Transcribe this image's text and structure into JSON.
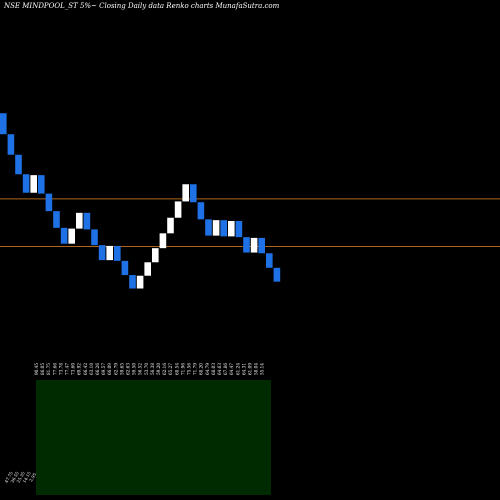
{
  "chart_data": {
    "type": "renko",
    "title": "NSE MINDPOOL_ST 5%~  Closing Daily data  Renko  charts MunafaSutra.com",
    "colors": {
      "background": "#000000",
      "up_brick": "#ffffff",
      "down_brick": "#1e72e6",
      "reference_line": "#b0651a",
      "volume_panel": "#002a00"
    },
    "bricks": [
      {
        "dir": "down",
        "close": 86.05
      },
      {
        "dir": "down",
        "close": 81.75
      },
      {
        "dir": "down",
        "close": 77.66
      },
      {
        "dir": "down",
        "close": 73.78
      },
      {
        "dir": "up",
        "close": 77.47
      },
      {
        "dir": "down",
        "close": 73.6
      },
      {
        "dir": "down",
        "close": 69.92
      },
      {
        "dir": "down",
        "close": 66.42
      },
      {
        "dir": "down",
        "close": 63.1
      },
      {
        "dir": "up",
        "close": 66.26
      },
      {
        "dir": "up",
        "close": 69.57
      },
      {
        "dir": "down",
        "close": 66.09
      },
      {
        "dir": "down",
        "close": 62.79
      },
      {
        "dir": "down",
        "close": 59.65
      },
      {
        "dir": "up",
        "close": 62.63
      },
      {
        "dir": "down",
        "close": 59.5
      },
      {
        "dir": "down",
        "close": 56.52
      },
      {
        "dir": "down",
        "close": 53.7
      },
      {
        "dir": "up",
        "close": 56.38
      },
      {
        "dir": "up",
        "close": 59.2
      },
      {
        "dir": "up",
        "close": 62.16
      },
      {
        "dir": "up",
        "close": 65.27
      },
      {
        "dir": "up",
        "close": 68.54
      },
      {
        "dir": "up",
        "close": 71.96
      },
      {
        "dir": "up",
        "close": 75.56
      },
      {
        "dir": "down",
        "close": 71.79
      },
      {
        "dir": "down",
        "close": 68.2
      },
      {
        "dir": "down",
        "close": 64.79
      },
      {
        "dir": "up",
        "close": 68.03
      },
      {
        "dir": "down",
        "close": 64.63
      },
      {
        "dir": "up",
        "close": 67.86
      },
      {
        "dir": "down",
        "close": 64.47
      },
      {
        "dir": "down",
        "close": 61.24
      },
      {
        "dir": "up",
        "close": 64.31
      },
      {
        "dir": "down",
        "close": 61.09
      },
      {
        "dir": "down",
        "close": 58.04
      },
      {
        "dir": "down",
        "close": 55.14
      }
    ],
    "tick_labels": [
      "90.45",
      "86.05",
      "81.75",
      "77.66",
      "73.78",
      "77.47",
      "73.60",
      "69.92",
      "66.42",
      "63.10",
      "66.26",
      "69.57",
      "66.09",
      "62.79",
      "59.65",
      "62.63",
      "59.50",
      "56.52",
      "53.70",
      "56.38",
      "59.20",
      "62.16",
      "65.27",
      "68.54",
      "71.96",
      "75.56",
      "71.79",
      "68.20",
      "64.79",
      "68.03",
      "64.63",
      "67.86",
      "64.47",
      "61.24",
      "64.31",
      "61.09",
      "58.04",
      "55.14"
    ],
    "reference_lines": [
      72.5,
      62.5
    ],
    "ylim": [
      45,
      110
    ],
    "volume_axis_labels": [
      "47.75",
      "36.55",
      "25.35",
      "14.15",
      "2.95"
    ]
  }
}
